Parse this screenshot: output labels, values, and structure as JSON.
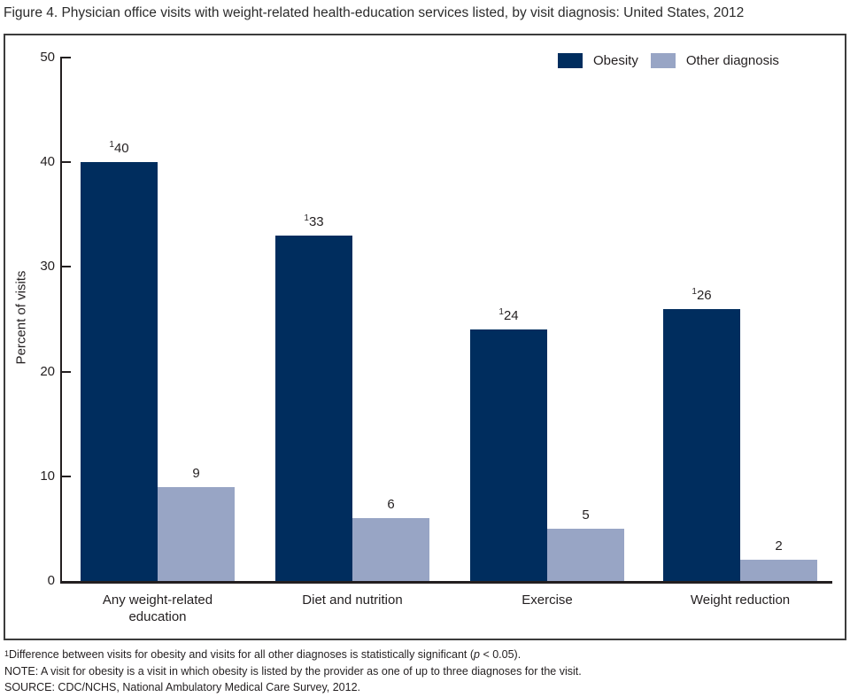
{
  "title": "Figure 4. Physician office visits with weight-related health-education services listed, by visit diagnosis: United States, 2012",
  "chart_data": {
    "type": "bar",
    "title": "Figure 4. Physician office visits with weight-related health-education services listed, by visit diagnosis: United States, 2012",
    "xlabel": "",
    "ylabel": "Percent of visits",
    "ylim": [
      0,
      50
    ],
    "yticks": [
      0,
      10,
      20,
      30,
      40,
      50
    ],
    "grid": false,
    "legend_position": "top-right",
    "categories": [
      "Any weight-related education",
      "Diet and nutrition",
      "Exercise",
      "Weight reduction"
    ],
    "series": [
      {
        "name": "Obesity",
        "color": "#002d5e",
        "values": [
          40,
          33,
          24,
          26
        ],
        "labels": [
          "¹40",
          "¹33",
          "¹24",
          "¹26"
        ]
      },
      {
        "name": "Other diagnosis",
        "color": "#98a5c5",
        "values": [
          9,
          6,
          5,
          2
        ],
        "labels": [
          "9",
          "6",
          "5",
          "2"
        ]
      }
    ]
  },
  "colors": {
    "obesity": "#002d5e",
    "other_diagnosis": "#98a5c5",
    "axis": "#231f20",
    "box_border": "#3c3c3c"
  },
  "footnotes": {
    "line1_sup": "1",
    "line1_pre": "Difference between visits for obesity and visits for all other diagnoses is statistically significant (",
    "line1_italic": "p",
    "line1_post": " < 0.05).",
    "line2": "NOTE: A visit for obesity is a visit in which obesity is listed by the provider as one of up to three diagnoses for the visit.",
    "line3": "SOURCE: CDC/NCHS, National Ambulatory Medical Care Survey, 2012."
  }
}
